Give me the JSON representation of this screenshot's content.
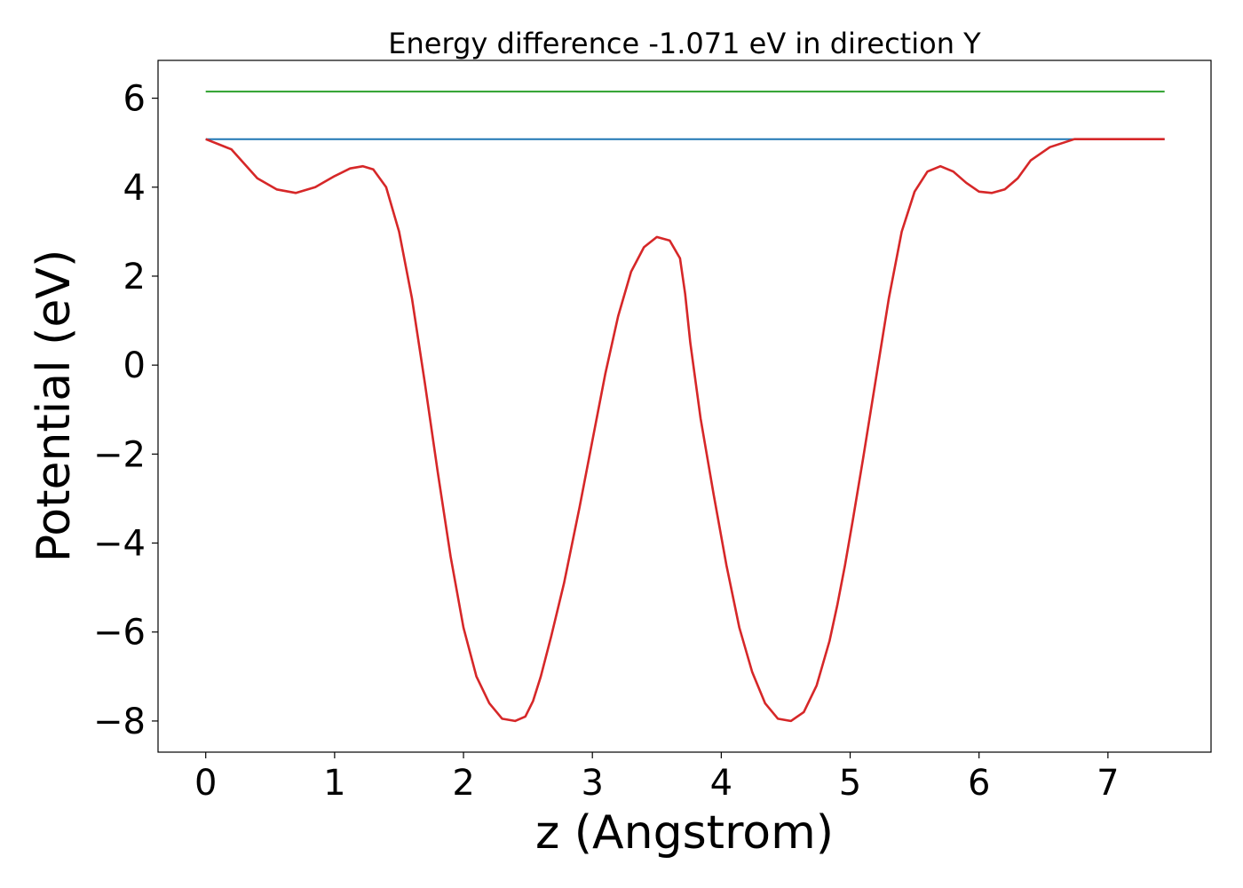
{
  "chart_data": {
    "type": "line",
    "title": "Energy difference -1.071 eV in direction Y",
    "xlabel": "z (Angstrom)",
    "ylabel": "Potential (eV)",
    "xlim": [
      -0.37,
      7.8
    ],
    "ylim": [
      -8.7,
      6.85
    ],
    "xticks": [
      0,
      1,
      2,
      3,
      4,
      5,
      6,
      7
    ],
    "yticks": [
      -8,
      -6,
      -4,
      -2,
      0,
      2,
      4,
      6
    ],
    "xtick_labels": [
      "0",
      "1",
      "2",
      "3",
      "4",
      "5",
      "6",
      "7"
    ],
    "ytick_labels": [
      "−8",
      "−6",
      "−4",
      "−2",
      "0",
      "2",
      "4",
      "6"
    ],
    "grid": false,
    "series": [
      {
        "color": "#2ca02c",
        "x": [
          0,
          7.44
        ],
        "y": [
          6.15,
          6.15
        ]
      },
      {
        "color": "#1f77b4",
        "x": [
          0,
          7.44
        ],
        "y": [
          5.08,
          5.08
        ]
      },
      {
        "color": "#d62728",
        "x": [
          0,
          0.2,
          0.4,
          0.55,
          0.7,
          0.85,
          1.0,
          1.12,
          1.22,
          1.3,
          1.4,
          1.5,
          1.6,
          1.7,
          1.8,
          1.9,
          2.0,
          2.1,
          2.2,
          2.3,
          2.4,
          2.48,
          2.54,
          2.6,
          2.68,
          2.78,
          2.9,
          3.0,
          3.1,
          3.2,
          3.3,
          3.4,
          3.5,
          3.6,
          3.68,
          3.72,
          3.76,
          3.84,
          3.94,
          4.04,
          4.14,
          4.24,
          4.34,
          4.44,
          4.54,
          4.64,
          4.74,
          4.84,
          4.9,
          4.96,
          5.02,
          5.1,
          5.2,
          5.3,
          5.4,
          5.5,
          5.6,
          5.7,
          5.8,
          5.9,
          6.0,
          6.1,
          6.2,
          6.3,
          6.4,
          6.55,
          6.74,
          6.9,
          7.04,
          7.2,
          7.35,
          7.44
        ],
        "y": [
          5.08,
          4.85,
          4.2,
          3.95,
          3.87,
          4.0,
          4.25,
          4.42,
          4.47,
          4.4,
          4.0,
          3.0,
          1.5,
          -0.4,
          -2.4,
          -4.3,
          -5.9,
          -7.0,
          -7.6,
          -7.95,
          -8.0,
          -7.9,
          -7.55,
          -7.0,
          -6.1,
          -4.9,
          -3.2,
          -1.7,
          -0.2,
          1.1,
          2.1,
          2.65,
          2.88,
          2.8,
          2.4,
          1.6,
          0.5,
          -1.2,
          -2.9,
          -4.5,
          -5.9,
          -6.9,
          -7.6,
          -7.95,
          -8.0,
          -7.8,
          -7.2,
          -6.2,
          -5.4,
          -4.5,
          -3.5,
          -2.1,
          -0.3,
          1.5,
          3.0,
          3.9,
          4.35,
          4.47,
          4.35,
          4.1,
          3.9,
          3.87,
          3.95,
          4.2,
          4.6,
          4.9,
          5.08,
          5.08,
          5.08,
          5.08,
          5.08,
          5.08
        ]
      }
    ]
  }
}
